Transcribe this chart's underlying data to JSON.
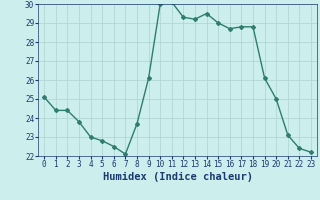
{
  "x": [
    0,
    1,
    2,
    3,
    4,
    5,
    6,
    7,
    8,
    9,
    10,
    11,
    12,
    13,
    14,
    15,
    16,
    17,
    18,
    19,
    20,
    21,
    22,
    23
  ],
  "y": [
    25.1,
    24.4,
    24.4,
    23.8,
    23.0,
    22.8,
    22.5,
    22.1,
    23.7,
    26.1,
    30.0,
    30.1,
    29.3,
    29.2,
    29.5,
    29.0,
    28.7,
    28.8,
    28.8,
    26.1,
    25.0,
    23.1,
    22.4,
    22.2
  ],
  "xlabel": "Humidex (Indice chaleur)",
  "ylim": [
    22,
    30
  ],
  "yticks": [
    22,
    23,
    24,
    25,
    26,
    27,
    28,
    29,
    30
  ],
  "xticks": [
    0,
    1,
    2,
    3,
    4,
    5,
    6,
    7,
    8,
    9,
    10,
    11,
    12,
    13,
    14,
    15,
    16,
    17,
    18,
    19,
    20,
    21,
    22,
    23
  ],
  "line_color": "#2e7d6e",
  "marker": "D",
  "marker_size": 2.0,
  "line_width": 1.0,
  "bg_color": "#cceeed",
  "grid_color": "#aad4d0",
  "xlabel_color": "#1a3a6e",
  "tick_color": "#1a3a6e",
  "tick_fontsize": 5.5,
  "xlabel_fontsize": 7.5
}
